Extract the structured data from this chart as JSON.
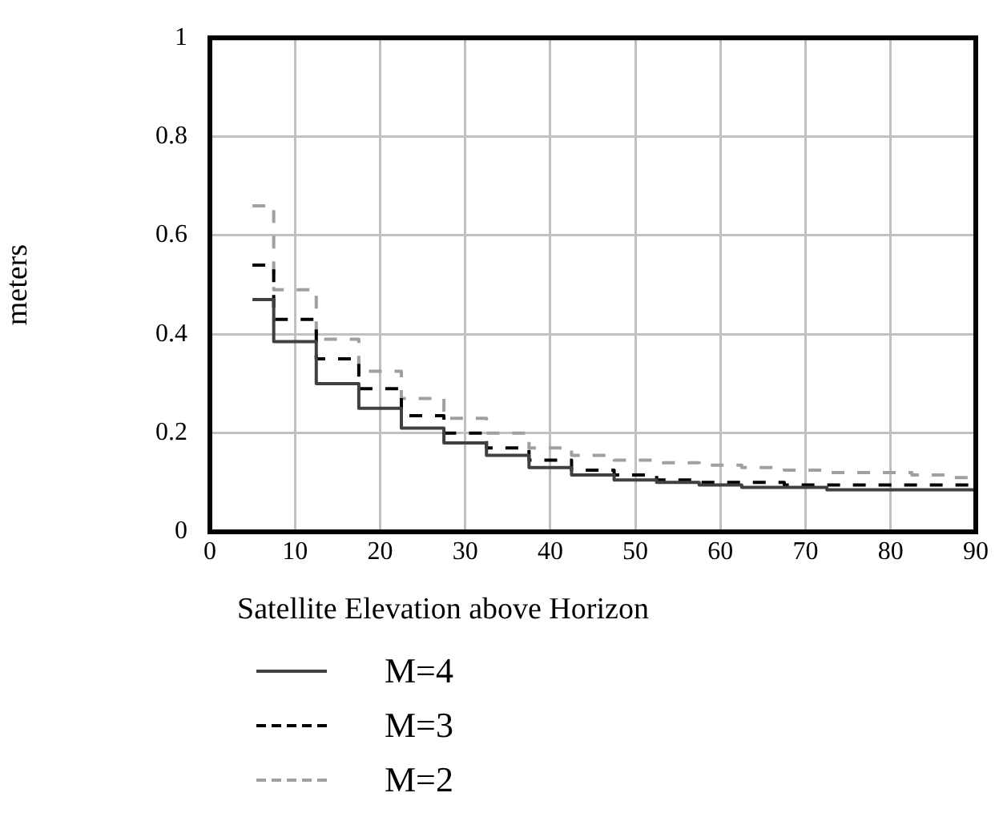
{
  "chart_data": {
    "type": "step",
    "xlabel": "Satellite Elevation above Horizon",
    "ylabel": "meters",
    "x": [
      5,
      10,
      15,
      20,
      25,
      30,
      35,
      40,
      45,
      50,
      55,
      60,
      65,
      70,
      75,
      80,
      85,
      90
    ],
    "series": [
      {
        "name": "M=4",
        "color": "#404040",
        "line_style": "solid",
        "values": [
          0.47,
          0.385,
          0.3,
          0.25,
          0.21,
          0.18,
          0.155,
          0.13,
          0.115,
          0.105,
          0.1,
          0.095,
          0.09,
          0.09,
          0.085,
          0.085,
          0.085,
          0.085
        ]
      },
      {
        "name": "M=3",
        "color": "#000000",
        "line_style": "dashed",
        "values": [
          0.54,
          0.43,
          0.35,
          0.29,
          0.235,
          0.2,
          0.17,
          0.145,
          0.125,
          0.115,
          0.105,
          0.1,
          0.1,
          0.095,
          0.095,
          0.095,
          0.095,
          0.095
        ]
      },
      {
        "name": "M=2",
        "color": "#a0a0a0",
        "line_style": "dashed",
        "values": [
          0.66,
          0.49,
          0.39,
          0.325,
          0.27,
          0.23,
          0.2,
          0.17,
          0.155,
          0.145,
          0.14,
          0.135,
          0.13,
          0.125,
          0.12,
          0.12,
          0.115,
          0.11
        ]
      }
    ],
    "xlim": [
      0,
      90
    ],
    "xticks": [
      0,
      10,
      20,
      30,
      40,
      50,
      60,
      70,
      80,
      90
    ],
    "ylim": [
      0,
      1
    ],
    "yticks": [
      0,
      0.2,
      0.4,
      0.6,
      0.8,
      1
    ],
    "grid": true,
    "legend": "bottom",
    "marker": "none"
  }
}
